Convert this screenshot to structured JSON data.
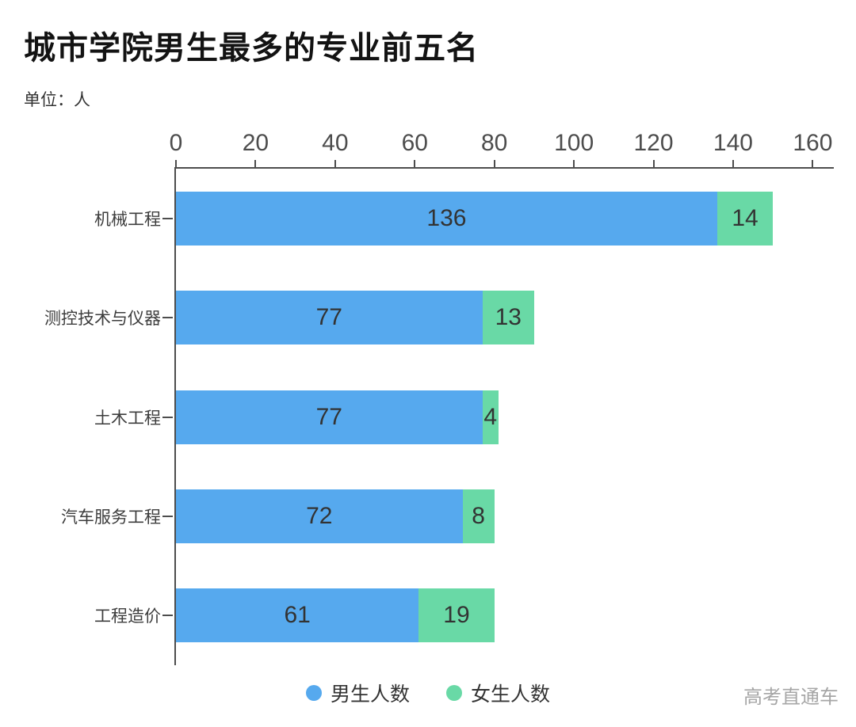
{
  "page": {
    "title": "城市学院男生最多的专业前五名",
    "unit_label": "单位：人",
    "watermark": "高考直通车"
  },
  "colors": {
    "male_bar": "#56a9ee",
    "female_bar": "#69d9a6",
    "axis": "#4d4d4d",
    "tick_text": "#4d4d4d",
    "category_text": "#3d3d3d",
    "value_text": "#333333",
    "watermark_text": "#a6a6a6"
  },
  "chart_data": {
    "type": "bar",
    "orientation": "horizontal",
    "stacked": true,
    "title": "城市学院男生最多的专业前五名",
    "unit": "人",
    "categories": [
      "机械工程",
      "测控技术与仪器",
      "土木工程",
      "汽车服务工程",
      "工程造价"
    ],
    "series": [
      {
        "key": "male",
        "name": "男生人数",
        "color": "#56a9ee",
        "values": [
          136,
          77,
          77,
          72,
          61
        ]
      },
      {
        "key": "female",
        "name": "女生人数",
        "color": "#69d9a6",
        "values": [
          14,
          13,
          4,
          8,
          19
        ]
      }
    ],
    "x_ticks": [
      0,
      20,
      40,
      60,
      80,
      100,
      120,
      140,
      160
    ],
    "xlim": [
      0,
      165.3
    ],
    "grid": false,
    "legend_position": "bottom",
    "value_labels": "inside-center"
  }
}
